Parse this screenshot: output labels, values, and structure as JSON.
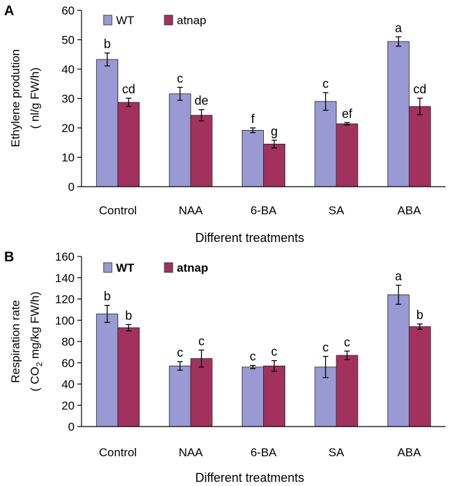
{
  "chart_data": [
    {
      "panel_label": "A",
      "type": "bar",
      "categories": [
        "Control",
        "NAA",
        "6-BA",
        "SA",
        "ABA"
      ],
      "series": [
        {
          "name": "WT",
          "color": "#9999d4",
          "values": [
            43.3,
            31.6,
            19.2,
            29.0,
            49.4
          ],
          "errors": [
            2.2,
            2.2,
            0.8,
            3.0,
            1.6
          ],
          "letters": [
            "b",
            "c",
            "f",
            "c",
            "a"
          ]
        },
        {
          "name": "atnap",
          "color": "#a3315e",
          "values": [
            28.7,
            24.3,
            14.5,
            21.4,
            27.3
          ],
          "errors": [
            1.4,
            1.9,
            1.3,
            0.4,
            2.8
          ],
          "letters": [
            "cd",
            "de",
            "g",
            "ef",
            "cd"
          ]
        }
      ],
      "ylabel_line1": "Ethylene prodution",
      "ylabel_line2": "( nl/g FW/h)",
      "xlabel": "Different treatments",
      "ylim": [
        0,
        60
      ],
      "yticks": [
        0,
        10,
        20,
        30,
        40,
        50,
        60
      ],
      "legend": "top-left",
      "legend_bold": false
    },
    {
      "panel_label": "B",
      "type": "bar",
      "categories": [
        "Control",
        "NAA",
        "6-BA",
        "SA",
        "ABA"
      ],
      "series": [
        {
          "name": "WT",
          "color": "#9999d4",
          "values": [
            106,
            57,
            56,
            56,
            124
          ],
          "errors": [
            8,
            4,
            1.5,
            10,
            9
          ],
          "letters": [
            "b",
            "c",
            "c",
            "c",
            "a"
          ]
        },
        {
          "name": "atnap",
          "color": "#a3315e",
          "values": [
            93,
            64,
            57,
            67,
            94
          ],
          "errors": [
            3,
            8,
            5,
            4,
            2.5
          ],
          "letters": [
            "b",
            "c",
            "c",
            "c",
            "b"
          ]
        }
      ],
      "ylabel_line1": "Respiration rate",
      "ylabel_line2_pre": "( CO",
      "ylabel_line2_sub": "2",
      "ylabel_line2_post": " mg/kg FW/h)",
      "xlabel": "Different treatments",
      "ylim": [
        0,
        160
      ],
      "yticks": [
        0,
        20,
        40,
        60,
        80,
        100,
        120,
        140,
        160
      ],
      "legend": "top-left",
      "legend_bold": true
    }
  ]
}
